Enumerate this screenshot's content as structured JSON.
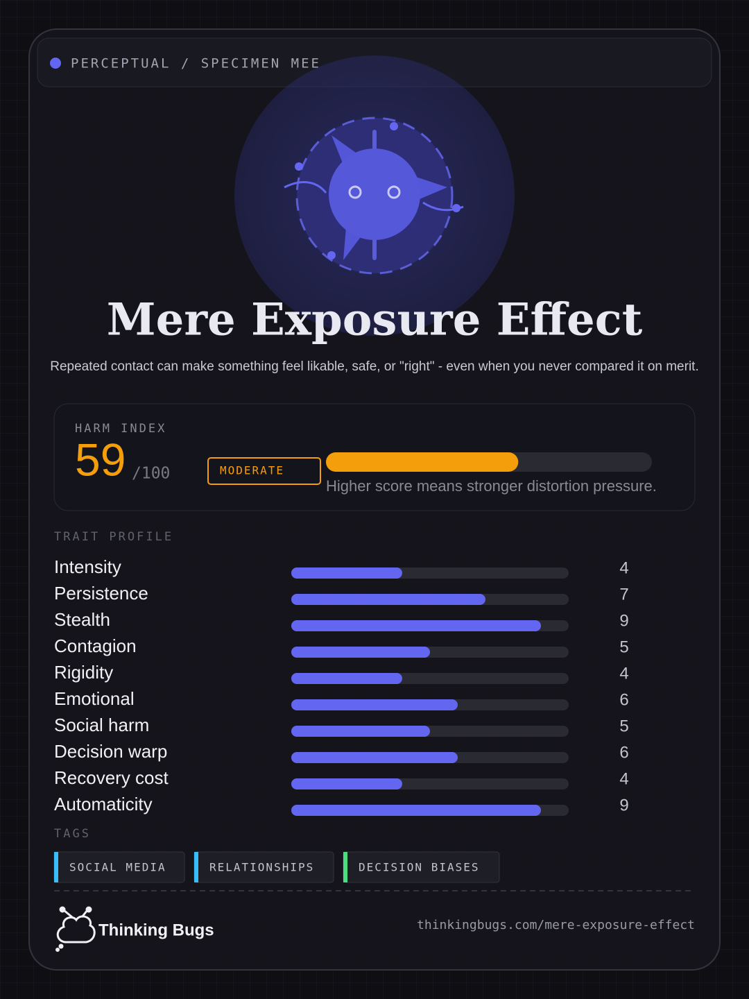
{
  "header": {
    "category": "PERCEPTUAL / SPECIMEN MEE"
  },
  "title": "Mere Exposure Effect",
  "subtitle": "Repeated contact can make something feel likable, safe, or \"right\" - even when you never compared it on merit.",
  "harm": {
    "label": "HARM INDEX",
    "score": 59,
    "max_label": "/100",
    "level": "MODERATE",
    "note": "Higher score means stronger distortion pressure."
  },
  "traits": {
    "heading": "TRAIT PROFILE",
    "items": [
      {
        "name": "Intensity",
        "value": 4
      },
      {
        "name": "Persistence",
        "value": 7
      },
      {
        "name": "Stealth",
        "value": 9
      },
      {
        "name": "Contagion",
        "value": 5
      },
      {
        "name": "Rigidity",
        "value": 4
      },
      {
        "name": "Emotional",
        "value": 6
      },
      {
        "name": "Social harm",
        "value": 5
      },
      {
        "name": "Decision warp",
        "value": 6
      },
      {
        "name": "Recovery cost",
        "value": 4
      },
      {
        "name": "Automaticity",
        "value": 9
      }
    ]
  },
  "tags": {
    "heading": "TAGS",
    "items": [
      {
        "label": "SOCIAL MEDIA",
        "color": "#38bdf8"
      },
      {
        "label": "RELATIONSHIPS",
        "color": "#38bdf8"
      },
      {
        "label": "DECISION BIASES",
        "color": "#4ade80"
      }
    ]
  },
  "footer": {
    "brand": "Thinking Bugs",
    "url": "thinkingbugs.com/mere-exposure-effect"
  }
}
